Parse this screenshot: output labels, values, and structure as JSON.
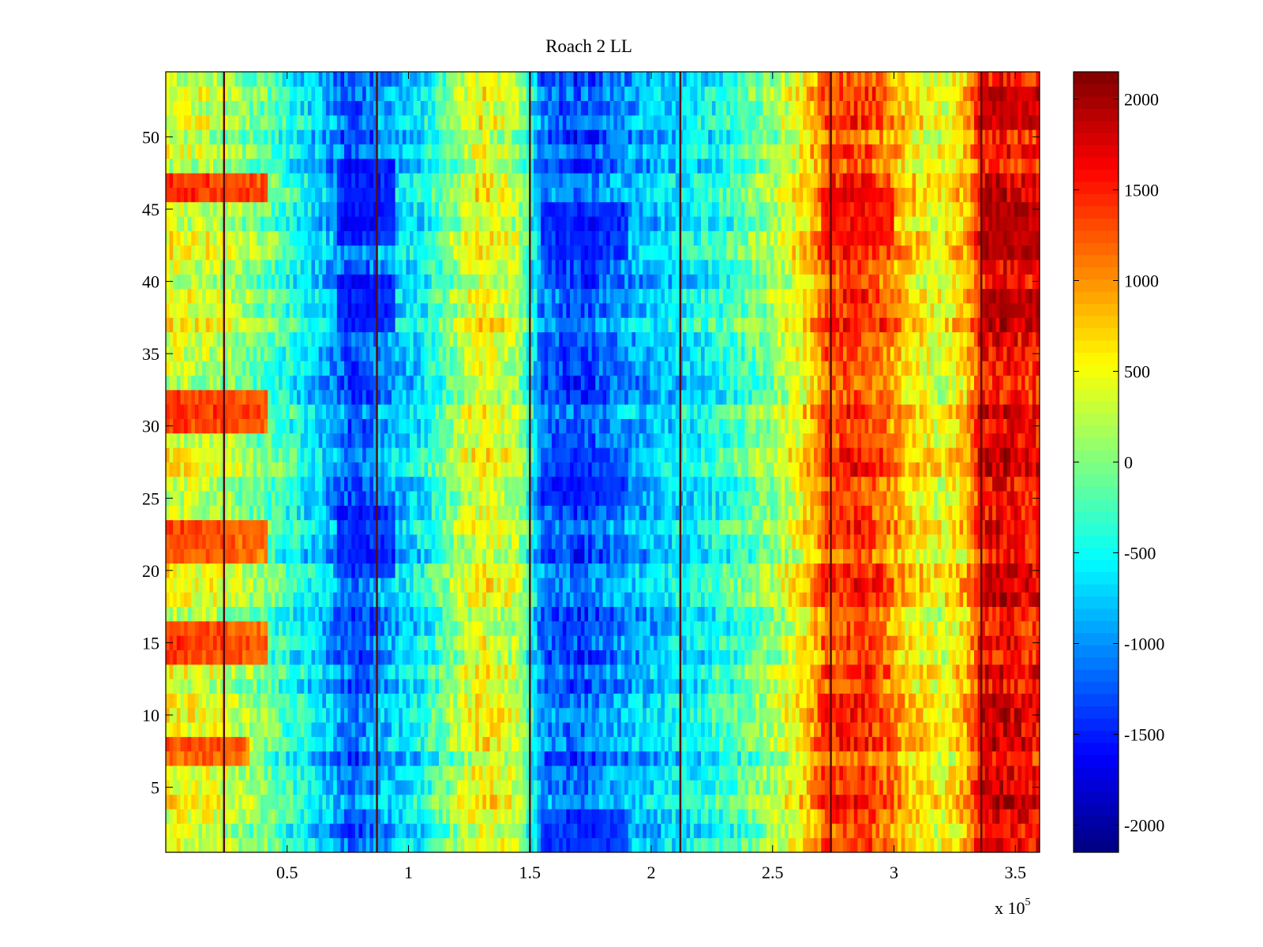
{
  "chart_data": {
    "type": "heatmap",
    "title": "Roach 2 LL",
    "xlabel": "",
    "ylabel": "",
    "x_exponent_label": "x 10",
    "x_exponent_power": "5",
    "xlim": [
      0,
      3.6
    ],
    "ylim": [
      0.5,
      54.5
    ],
    "rows": 54,
    "x_ticks": [
      0.5,
      1,
      1.5,
      2,
      2.5,
      3,
      3.5
    ],
    "x_tick_labels": [
      "0.5",
      "1",
      "1.5",
      "2",
      "2.5",
      "3",
      "3.5"
    ],
    "y_ticks": [
      5,
      10,
      15,
      20,
      25,
      30,
      35,
      40,
      45,
      50
    ],
    "y_tick_labels": [
      "5",
      "10",
      "15",
      "20",
      "25",
      "30",
      "35",
      "40",
      "45",
      "50"
    ],
    "colorbar": {
      "colormap": "jet",
      "clim": [
        -2150,
        2150
      ],
      "ticks": [
        2000,
        1500,
        1000,
        500,
        0,
        -500,
        -1000,
        -1500,
        -2000
      ],
      "tick_labels": [
        "2000",
        "1500",
        "1000",
        "500",
        "0",
        "-500",
        "-1000",
        "-1500",
        "-2000"
      ]
    },
    "dark_vertical_lines_x": [
      0.24,
      0.87,
      1.5,
      2.12,
      2.74,
      3.36
    ],
    "column_profile": {
      "x": [
        0,
        0.2,
        0.45,
        0.68,
        0.78,
        0.9,
        1.05,
        1.2,
        1.3,
        1.45,
        1.5,
        1.55,
        1.7,
        1.85,
        2.0,
        2.15,
        2.3,
        2.5,
        2.65,
        2.72,
        2.85,
        2.95,
        3.05,
        3.2,
        3.3,
        3.36,
        3.45,
        3.6
      ],
      "values": [
        400,
        300,
        -200,
        -900,
        -1300,
        -900,
        -600,
        100,
        500,
        200,
        -400,
        -1100,
        -1300,
        -1000,
        -800,
        -600,
        -400,
        100,
        700,
        1300,
        1400,
        1200,
        700,
        400,
        800,
        1600,
        1700,
        1500
      ]
    },
    "hot_spots": [
      {
        "x_range": [
          0,
          0.42
        ],
        "y_range": [
          45.5,
          47.5
        ],
        "value": 1800
      },
      {
        "x_range": [
          0,
          0.42
        ],
        "y_range": [
          29.5,
          32.5
        ],
        "value": 1800
      },
      {
        "x_range": [
          0,
          0.42
        ],
        "y_range": [
          20.5,
          23.5
        ],
        "value": 1700
      },
      {
        "x_range": [
          0,
          0.42
        ],
        "y_range": [
          13.5,
          16.5
        ],
        "value": 1800
      },
      {
        "x_range": [
          0,
          0.34
        ],
        "y_range": [
          6.5,
          8.5
        ],
        "value": 1600
      },
      {
        "x_range": [
          3.36,
          3.6
        ],
        "y_range": [
          41.5,
          45.5
        ],
        "value": 2000
      },
      {
        "x_range": [
          3.36,
          3.6
        ],
        "y_range": [
          37.5,
          39.5
        ],
        "value": 2000
      },
      {
        "x_range": [
          3.36,
          3.6
        ],
        "y_range": [
          50.5,
          53.5
        ],
        "value": 1900
      },
      {
        "x_range": [
          2.7,
          3.0
        ],
        "y_range": [
          42.5,
          46.5
        ],
        "value": 1700
      }
    ],
    "cold_spots": [
      {
        "x_range": [
          0.7,
          0.95
        ],
        "y_range": [
          42.5,
          48.5
        ],
        "value": -1700
      },
      {
        "x_range": [
          0.7,
          0.95
        ],
        "y_range": [
          36.5,
          40.5
        ],
        "value": -1700
      },
      {
        "x_range": [
          0.7,
          0.95
        ],
        "y_range": [
          19.5,
          24.5
        ],
        "value": -1600
      },
      {
        "x_range": [
          1.55,
          1.9
        ],
        "y_range": [
          41.5,
          45.5
        ],
        "value": -1600
      },
      {
        "x_range": [
          1.55,
          1.9
        ],
        "y_range": [
          24.5,
          28.5
        ],
        "value": -1500
      },
      {
        "x_range": [
          1.55,
          1.9
        ],
        "y_range": [
          0.5,
          3.5
        ],
        "value": -1500
      }
    ]
  }
}
